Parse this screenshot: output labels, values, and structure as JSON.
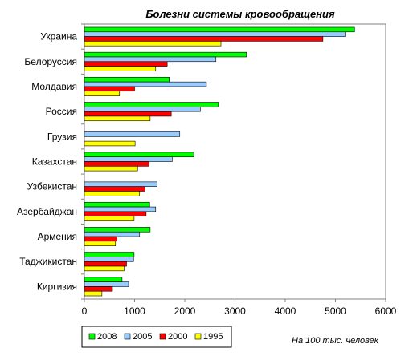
{
  "chart_data": {
    "type": "bar",
    "orientation": "horizontal",
    "title": "Болезни системы кровообращения",
    "note": "На 100 тыс. человек",
    "xlim": [
      0,
      6000
    ],
    "xticks": [
      "0",
      "1000",
      "2000",
      "3000",
      "4000",
      "5000",
      "6000"
    ],
    "xtick_values": [
      0,
      1000,
      2000,
      3000,
      4000,
      5000,
      6000
    ],
    "grid": false,
    "legend_position": "bottom-left",
    "categories": [
      "Украина",
      "Белоруссия",
      "Молдавия",
      "Россия",
      "Грузия",
      "Казахстан",
      "Узбекистан",
      "Азербайджан",
      "Армения",
      "Таджикистан",
      "Киргизия"
    ],
    "series": [
      {
        "name": "2008",
        "color": "#00ff00",
        "values": [
          5380,
          3230,
          1690,
          2670,
          null,
          2180,
          null,
          1300,
          1310,
          990,
          750
        ]
      },
      {
        "name": "2005",
        "color": "#99ccff",
        "values": [
          5190,
          2620,
          2430,
          2310,
          1900,
          1750,
          1450,
          1420,
          1100,
          980,
          880
        ]
      },
      {
        "name": "2000",
        "color": "#ff0000",
        "values": [
          4750,
          1650,
          1000,
          1730,
          null,
          1290,
          1210,
          1230,
          650,
          840,
          560
        ]
      },
      {
        "name": "1995",
        "color": "#ffff00",
        "values": [
          2720,
          1420,
          700,
          1310,
          1010,
          1060,
          1100,
          990,
          620,
          790,
          350
        ]
      }
    ]
  }
}
